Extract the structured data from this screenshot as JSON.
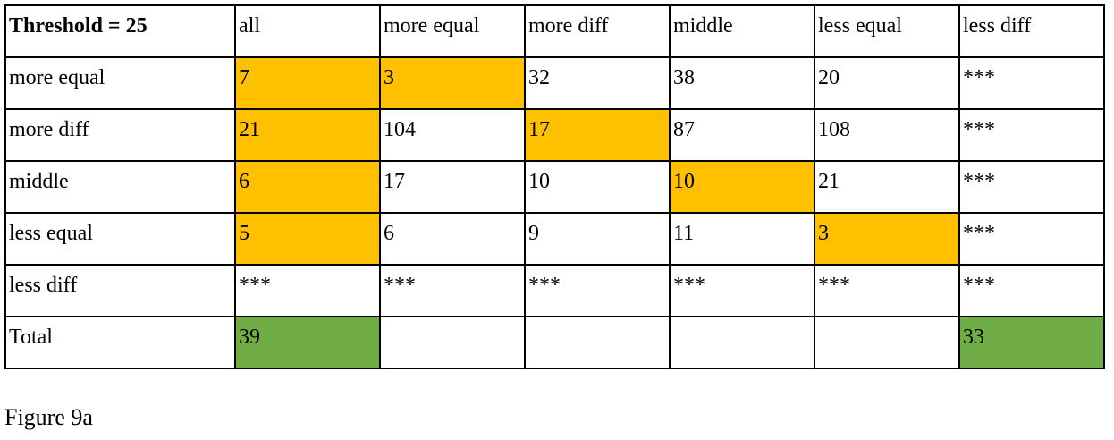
{
  "table": {
    "header": [
      "Threshold = 25",
      "all",
      "more equal",
      "more diff",
      "middle",
      "less equal",
      "less diff"
    ],
    "rows": [
      {
        "label": "more equal",
        "cells": [
          "7",
          "3",
          "32",
          "38",
          "20",
          "***"
        ],
        "highlight": [
          "orange",
          "orange",
          null,
          null,
          null,
          null
        ]
      },
      {
        "label": "more diff",
        "cells": [
          "21",
          "104",
          "17",
          "87",
          "108",
          "***"
        ],
        "highlight": [
          "orange",
          null,
          "orange",
          null,
          null,
          null
        ]
      },
      {
        "label": "middle",
        "cells": [
          "6",
          "17",
          "10",
          "10",
          "21",
          "***"
        ],
        "highlight": [
          "orange",
          null,
          null,
          "orange",
          null,
          null
        ]
      },
      {
        "label": "less equal",
        "cells": [
          "5",
          "6",
          "9",
          "11",
          "3",
          "***"
        ],
        "highlight": [
          "orange",
          null,
          null,
          null,
          "orange",
          null
        ]
      },
      {
        "label": "less diff",
        "cells": [
          "***",
          "***",
          "***",
          "***",
          "***",
          "***"
        ],
        "highlight": [
          null,
          null,
          null,
          null,
          null,
          null
        ]
      },
      {
        "label": "Total",
        "cells": [
          "39",
          "",
          "",
          "",
          "",
          "33"
        ],
        "highlight": [
          "green",
          null,
          null,
          null,
          null,
          "green"
        ]
      }
    ]
  },
  "caption": "Figure 9a",
  "colors": {
    "orange": "#FFC000",
    "green": "#70AD47",
    "border": "#000000"
  }
}
